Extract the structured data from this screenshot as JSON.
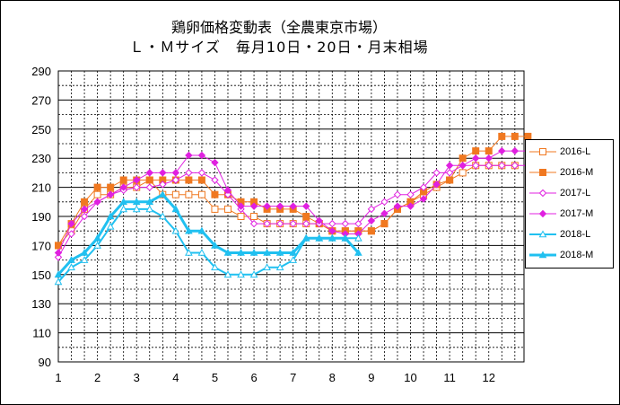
{
  "chart_data": {
    "type": "line",
    "title": "鶏卵価格変動表（全農東京市場）",
    "subtitle": "Ｌ・Ｍサイズ　毎月10日・20日・月末相場",
    "xlabel": "",
    "ylabel": "",
    "ylim": [
      90,
      290
    ],
    "yticks": [
      "290",
      "270",
      "250",
      "230",
      "210",
      "190",
      "170",
      "150",
      "130",
      "110",
      "90"
    ],
    "xticks": [
      "1",
      "2",
      "3",
      "4",
      "5",
      "6",
      "7",
      "8",
      "9",
      "10",
      "11",
      "12"
    ],
    "grid": true,
    "legend_position": "right",
    "series": [
      {
        "name": "2016-L",
        "color": "#f07820",
        "marker": "square-open",
        "line_width": 1,
        "values": [
          170,
          180,
          195,
          205,
          205,
          210,
          210,
          215,
          205,
          205,
          205,
          205,
          195,
          195,
          190,
          190,
          185,
          185,
          185,
          185,
          185,
          180,
          180,
          180,
          180,
          185,
          195,
          200,
          205,
          210,
          215,
          220,
          225,
          225,
          225,
          225
        ]
      },
      {
        "name": "2016-M",
        "color": "#f07820",
        "marker": "square-filled",
        "line_width": 1,
        "values": [
          170,
          185,
          200,
          210,
          210,
          215,
          215,
          215,
          215,
          215,
          215,
          215,
          205,
          205,
          200,
          200,
          195,
          195,
          195,
          190,
          185,
          180,
          180,
          180,
          180,
          185,
          195,
          200,
          207,
          212,
          215,
          230,
          235,
          235,
          245,
          245,
          245
        ]
      },
      {
        "name": "2017-L",
        "color": "#e020e0",
        "marker": "diamond-open",
        "line_width": 1,
        "values": [
          162,
          178,
          190,
          200,
          205,
          208,
          210,
          210,
          212,
          215,
          220,
          220,
          215,
          205,
          195,
          185,
          185,
          185,
          185,
          185,
          185,
          185,
          185,
          185,
          195,
          200,
          205,
          205,
          210,
          220,
          220,
          225,
          225,
          225,
          225,
          225,
          225
        ]
      },
      {
        "name": "2017-M",
        "color": "#e020e0",
        "marker": "diamond-filled",
        "line_width": 1,
        "values": [
          165,
          185,
          195,
          200,
          205,
          210,
          215,
          220,
          220,
          220,
          232,
          232,
          227,
          208,
          197,
          197,
          197,
          197,
          197,
          197,
          187,
          180,
          178,
          178,
          187,
          192,
          197,
          197,
          202,
          212,
          225,
          225,
          230,
          230,
          235,
          235,
          235
        ]
      },
      {
        "name": "2018-L",
        "color": "#20c0f0",
        "marker": "triangle-open",
        "line_width": 2,
        "values": [
          145,
          155,
          160,
          170,
          183,
          195,
          195,
          195,
          190,
          180,
          165,
          165,
          155,
          150,
          150,
          150,
          155,
          155,
          160,
          175,
          175,
          175,
          175,
          175
        ]
      },
      {
        "name": "2018-M",
        "color": "#20c0f0",
        "marker": "triangle-filled",
        "line_width": 3,
        "values": [
          150,
          160,
          165,
          175,
          190,
          200,
          200,
          200,
          205,
          195,
          180,
          180,
          170,
          165,
          165,
          165,
          165,
          165,
          165,
          175,
          175,
          175,
          175,
          165
        ]
      }
    ]
  }
}
